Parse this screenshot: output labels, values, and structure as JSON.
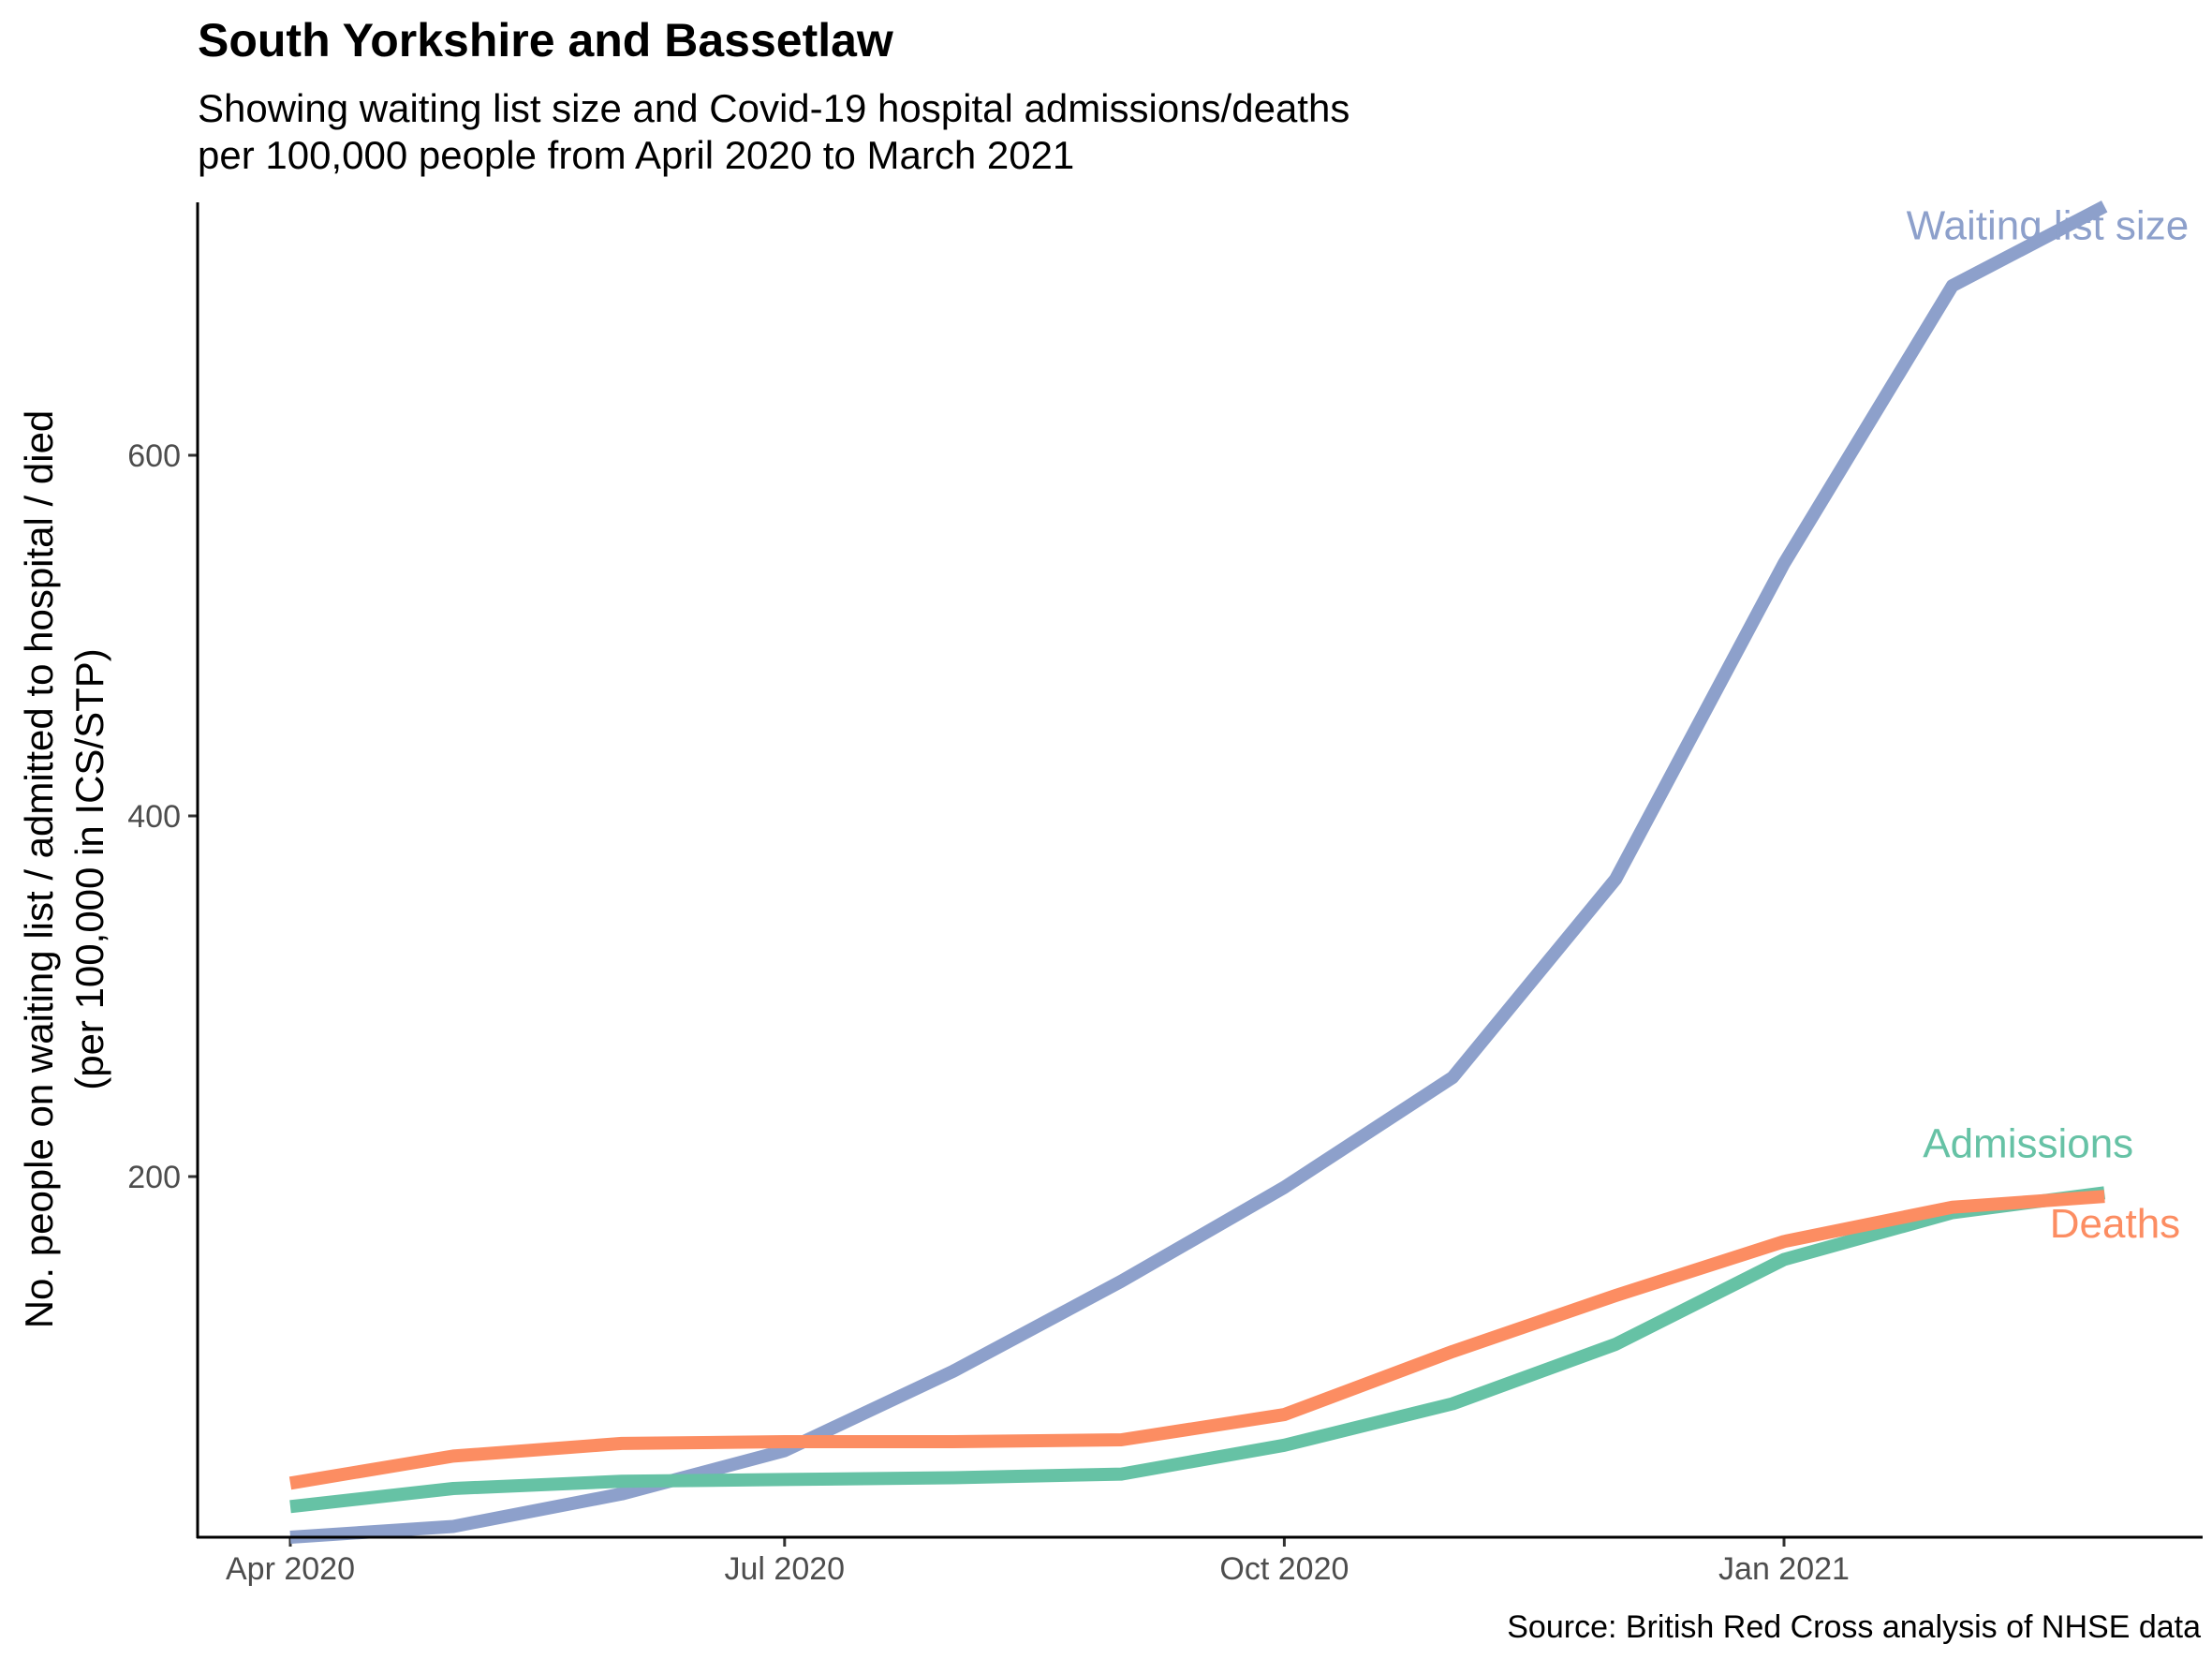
{
  "title": "South Yorkshire and Bassetlaw",
  "subtitle": {
    "line1": "Showing waiting list size and Covid-19 hospital admissions/deaths",
    "line2": "per 100,000 people from April 2020 to March 2021"
  },
  "caption": "Source: British Red Cross analysis of NHSE data",
  "chart_data": {
    "type": "line",
    "x": [
      "2020-04-01",
      "2020-05-01",
      "2020-06-01",
      "2020-07-01",
      "2020-08-01",
      "2020-09-01",
      "2020-10-01",
      "2020-11-01",
      "2020-12-01",
      "2021-01-01",
      "2021-02-01",
      "2021-03-01"
    ],
    "x_ticks": [
      {
        "date": "2020-04-01",
        "label": "Apr 2020"
      },
      {
        "date": "2020-07-01",
        "label": "Jul 2020"
      },
      {
        "date": "2020-10-01",
        "label": "Oct 2020"
      },
      {
        "date": "2021-01-01",
        "label": "Jan 2021"
      }
    ],
    "y_ticks": [
      200,
      400,
      600
    ],
    "ylim": [
      0,
      740
    ],
    "xlabel": "",
    "ylabel_line1": "No. people on waiting list / admitted to hospital / died",
    "ylabel_line2": "(per 100,000 in ICS/STP)",
    "grid": false,
    "legend": "direct labels at line ends",
    "series": [
      {
        "name": "Waiting list size",
        "color": "#8DA0CB",
        "values": [
          0,
          6,
          24,
          48,
          92,
          142,
          194,
          255,
          365,
          540,
          694,
          738
        ]
      },
      {
        "name": "Admissions",
        "color": "#66C2A5",
        "values": [
          17,
          27,
          31,
          32,
          33,
          35,
          51,
          74,
          107,
          154,
          180,
          191
        ]
      },
      {
        "name": "Deaths",
        "color": "#FC8D62",
        "values": [
          30,
          45,
          52,
          53,
          53,
          54,
          68,
          103,
          134,
          164,
          183,
          189
        ]
      }
    ]
  }
}
